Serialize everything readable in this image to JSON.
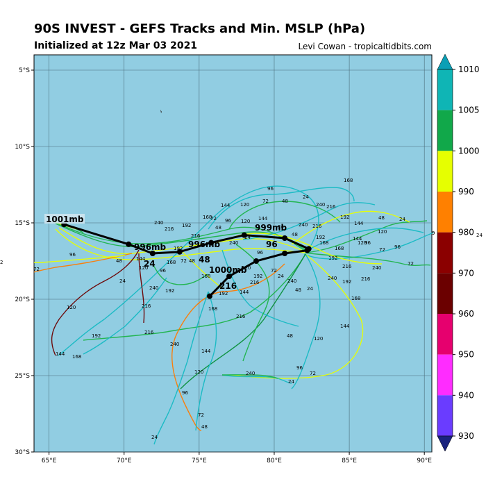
{
  "header": {
    "title": "90S INVEST - GEFS Tracks and Min. MSLP (hPa)",
    "subtitle": "Initialized at 12z Mar 03 2021",
    "credit": "Levi Cowan - tropicaltidbits.com"
  },
  "map": {
    "background_color": "#91cde2",
    "lon_range": [
      64,
      90.5
    ],
    "lat_range": [
      -30,
      -4
    ],
    "lon_ticks": [
      "65°E",
      "70°E",
      "75°E",
      "80°E",
      "85°E",
      "90°E"
    ],
    "lat_ticks": [
      "5°S",
      "10°S",
      "15°S",
      "20°S",
      "25°S",
      "30°S"
    ]
  },
  "colorbar": {
    "ticks": [
      "1010",
      "1005",
      "1000",
      "990",
      "980",
      "970",
      "960",
      "950",
      "940",
      "930"
    ],
    "colors": [
      "#0b9fb5",
      "#0fb5b5",
      "#11a84a",
      "#22c02a",
      "#e6ff00",
      "#ff8c00",
      "#ff6a00",
      "#8b0000",
      "#6b0000",
      "#e6006e",
      "#ff2cff",
      "#6a3cff",
      "#1a237e"
    ]
  },
  "mean_track": {
    "points": [
      {
        "lon": 82.3,
        "lat": -16.7,
        "label": ""
      },
      {
        "lon": 80.7,
        "lat": -16.0,
        "label": "96"
      },
      {
        "lon": 78.0,
        "lat": -15.8,
        "label": "999mb"
      },
      {
        "lon": 75.8,
        "lat": -16.3,
        "label": "996mb"
      },
      {
        "lon": 73.7,
        "lat": -16.9,
        "label": "48"
      },
      {
        "lon": 71.9,
        "lat": -17.0,
        "label": "24"
      },
      {
        "lon": 70.3,
        "lat": -16.4,
        "label": "996mb"
      },
      {
        "lon": 66.0,
        "lat": -15.1,
        "label": "1001mb"
      }
    ],
    "south_branch": [
      {
        "lon": 82.2,
        "lat": -16.8,
        "label": ""
      },
      {
        "lon": 80.7,
        "lat": -17.0,
        "label": ""
      },
      {
        "lon": 78.8,
        "lat": -17.5,
        "label": "1000mb"
      },
      {
        "lon": 77.0,
        "lat": -18.5,
        "label": "216"
      },
      {
        "lon": 75.7,
        "lat": -19.8,
        "label": ""
      }
    ]
  },
  "labels": {
    "mb_1001": "1001mb",
    "mb_996a": "996mb",
    "mb_996b": "996mb",
    "mb_999": "999mb",
    "mb_1000": "1000mb",
    "hr_24": "24",
    "hr_48": "48",
    "hr_96": "96",
    "hr_216": "216",
    "edge_a": "9",
    "edge_b": "24",
    "cut_lbl": "2"
  },
  "scatter_labels": [
    "240",
    "216",
    "192",
    "168",
    "144",
    "120",
    "96",
    "72",
    "48",
    "24"
  ]
}
